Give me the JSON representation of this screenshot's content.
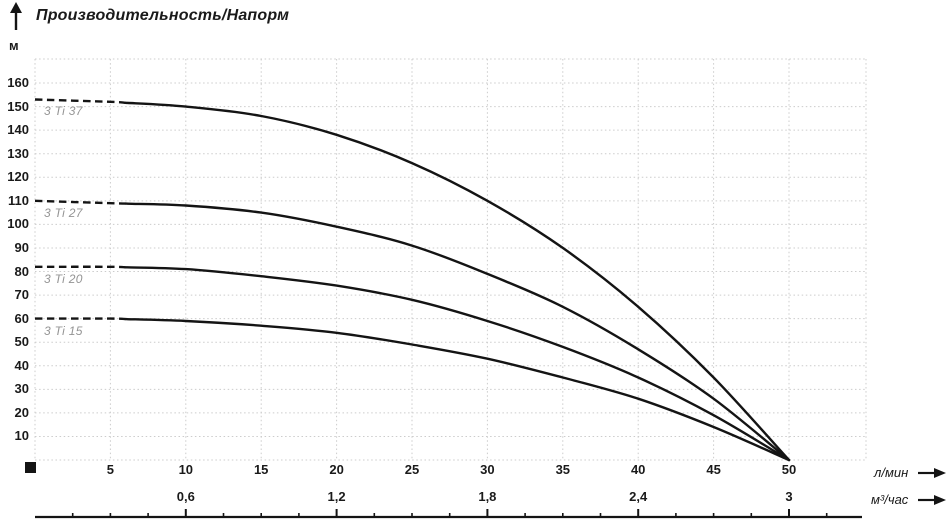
{
  "title": "Производительность/Напорм",
  "y_axis": {
    "unit": "м",
    "tick_values": [
      160,
      150,
      140,
      130,
      120,
      110,
      100,
      90,
      80,
      70,
      60,
      50,
      40,
      30,
      20,
      10
    ]
  },
  "x_axis_lpm": {
    "unit": "л/мин",
    "tick_values": [
      5,
      10,
      15,
      20,
      25,
      30,
      35,
      40,
      45,
      50
    ]
  },
  "x_axis_m3h": {
    "unit": "м³/час",
    "ticks": [
      {
        "label": "0,6",
        "lpm": 10
      },
      {
        "label": "1,2",
        "lpm": 20
      },
      {
        "label": "1,8",
        "lpm": 30
      },
      {
        "label": "2,4",
        "lpm": 40
      },
      {
        "label": "3",
        "lpm": 50
      }
    ]
  },
  "colors": {
    "curve": "#141414",
    "grid": "#cccccc",
    "curve_label": "#949494",
    "text": "#1a1a1a"
  },
  "chart_data": {
    "type": "line",
    "title": "Производительность/Напорм",
    "ylabel": "м",
    "xlabel": "л/мин",
    "xlabel_secondary": "м³/час",
    "x": [
      0,
      5,
      10,
      15,
      20,
      25,
      30,
      35,
      40,
      45,
      50
    ],
    "series": [
      {
        "name": "3 Ti 37",
        "values": [
          153,
          152,
          150,
          146,
          138,
          126,
          110,
          90,
          65,
          35,
          0
        ]
      },
      {
        "name": "3 Ti 27",
        "values": [
          110,
          109,
          108,
          105,
          99,
          91,
          79,
          65,
          47,
          26,
          0
        ]
      },
      {
        "name": "3 Ti 20",
        "values": [
          82,
          82,
          81,
          78,
          74,
          68,
          59,
          48,
          35,
          19,
          0
        ]
      },
      {
        "name": "3 Ti 15",
        "values": [
          60,
          60,
          59,
          57,
          54,
          49,
          43,
          35,
          26,
          14,
          0
        ]
      }
    ],
    "dashed_until_x": 6,
    "xlim": [
      0,
      55
    ],
    "ylim": [
      0,
      170
    ],
    "grid": true,
    "legend": "labels-under-curve-start"
  }
}
